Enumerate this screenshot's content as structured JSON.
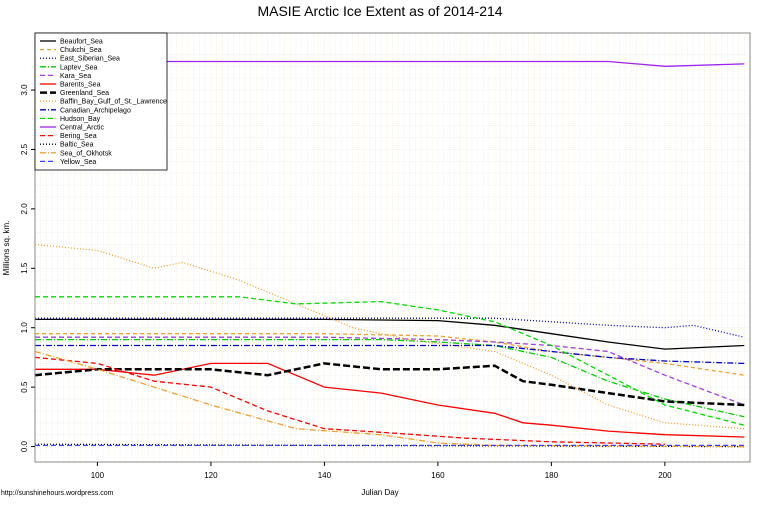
{
  "chart_data": {
    "type": "line",
    "title": "MASIE Arctic Ice Extent as of 2014-214",
    "xlabel": "Julian Day",
    "ylabel": "Millions sq. km.",
    "xlim": [
      89,
      215
    ],
    "ylim": [
      -0.13,
      3.48
    ],
    "xticks": [
      100,
      120,
      140,
      160,
      180,
      200
    ],
    "yticks": [
      0.0,
      0.5,
      1.0,
      1.5,
      2.0,
      2.5,
      3.0
    ],
    "ytick_labels": [
      "0.0",
      "0.5",
      "1.0",
      "1.5",
      "2.0",
      "2.5",
      "3.0"
    ],
    "grid": true,
    "legend_placement": "top-left",
    "footer": "http://sunshinehours.wordpress.com",
    "series": [
      {
        "name": "Beaufort_Sea",
        "color": "#000000",
        "dash": "",
        "x": [
          89,
          140,
          160,
          170,
          180,
          190,
          200,
          214
        ],
        "y": [
          1.07,
          1.07,
          1.06,
          1.02,
          0.95,
          0.88,
          0.82,
          0.85
        ]
      },
      {
        "name": "Chukchi_Sea",
        "color": "#f0a030",
        "dash": "4,3",
        "x": [
          89,
          140,
          160,
          170,
          180,
          190,
          200,
          214
        ],
        "y": [
          0.95,
          0.95,
          0.93,
          0.88,
          0.8,
          0.75,
          0.7,
          0.6
        ]
      },
      {
        "name": "East_Siberian_Sea",
        "color": "#0000cc",
        "dash": "1,2",
        "x": [
          89,
          140,
          170,
          180,
          190,
          200,
          205,
          214
        ],
        "y": [
          1.08,
          1.08,
          1.08,
          1.05,
          1.02,
          1.0,
          1.02,
          0.92
        ]
      },
      {
        "name": "Laptev_Sea",
        "color": "#00cc00",
        "dash": "6,2,1,2",
        "x": [
          89,
          150,
          160,
          170,
          180,
          190,
          200,
          214
        ],
        "y": [
          0.9,
          0.9,
          0.88,
          0.85,
          0.75,
          0.55,
          0.4,
          0.25
        ]
      },
      {
        "name": "Kara_Sea",
        "color": "#a040e0",
        "dash": "5,3",
        "x": [
          89,
          140,
          160,
          170,
          180,
          190,
          200,
          214
        ],
        "y": [
          0.92,
          0.92,
          0.9,
          0.88,
          0.85,
          0.8,
          0.6,
          0.35
        ]
      },
      {
        "name": "Barents_Sea",
        "color": "#ff0000",
        "dash": "",
        "x": [
          89,
          100,
          110,
          120,
          130,
          140,
          150,
          160,
          170,
          175,
          180,
          190,
          200,
          214
        ],
        "y": [
          0.65,
          0.65,
          0.6,
          0.7,
          0.7,
          0.5,
          0.45,
          0.35,
          0.28,
          0.2,
          0.18,
          0.13,
          0.1,
          0.08
        ]
      },
      {
        "name": "Greenland_Sea",
        "color": "#000000",
        "dash": "7,3",
        "width": 2.5,
        "x": [
          89,
          100,
          120,
          130,
          140,
          150,
          160,
          170,
          175,
          180,
          190,
          200,
          214
        ],
        "y": [
          0.6,
          0.65,
          0.65,
          0.6,
          0.7,
          0.65,
          0.65,
          0.68,
          0.55,
          0.52,
          0.45,
          0.38,
          0.35
        ]
      },
      {
        "name": "Baffin_Bay_Gulf_of_St._Lawrence",
        "color": "#f0a030",
        "dash": "1,2",
        "x": [
          89,
          100,
          110,
          115,
          125,
          135,
          145,
          155,
          170,
          180,
          190,
          200,
          214
        ],
        "y": [
          1.7,
          1.65,
          1.5,
          1.55,
          1.4,
          1.2,
          1.0,
          0.9,
          0.8,
          0.6,
          0.35,
          0.2,
          0.15
        ]
      },
      {
        "name": "Canadian_Archipelago",
        "color": "#0000cc",
        "dash": "6,2,1,2",
        "x": [
          89,
          170,
          180,
          190,
          200,
          214
        ],
        "y": [
          0.85,
          0.85,
          0.8,
          0.75,
          0.72,
          0.7
        ]
      },
      {
        "name": "Hudson_Bay",
        "color": "#00dd00",
        "dash": "5,3",
        "x": [
          89,
          125,
          135,
          150,
          160,
          170,
          180,
          190,
          200,
          214
        ],
        "y": [
          1.26,
          1.26,
          1.2,
          1.22,
          1.15,
          1.05,
          0.85,
          0.6,
          0.35,
          0.18
        ]
      },
      {
        "name": "Central_Arctic",
        "color": "#a020f0",
        "dash": "",
        "x": [
          89,
          190,
          200,
          214
        ],
        "y": [
          3.24,
          3.24,
          3.2,
          3.22
        ]
      },
      {
        "name": "Bering_Sea",
        "color": "#ff0000",
        "dash": "5,3",
        "x": [
          89,
          100,
          110,
          120,
          130,
          140,
          150,
          165,
          180,
          200
        ],
        "y": [
          0.75,
          0.7,
          0.55,
          0.5,
          0.3,
          0.15,
          0.12,
          0.07,
          0.04,
          0.02
        ]
      },
      {
        "name": "Baltic_Sea",
        "color": "#000000",
        "dash": "1,2",
        "x": [
          89,
          140,
          214
        ],
        "y": [
          0.02,
          0.01,
          0.0
        ]
      },
      {
        "name": "Sea_of_Okhotsk",
        "color": "#f0a030",
        "dash": "6,2,1,2",
        "x": [
          89,
          100,
          110,
          120,
          135,
          150,
          160,
          170,
          214
        ],
        "y": [
          0.8,
          0.65,
          0.5,
          0.35,
          0.15,
          0.1,
          0.03,
          0.01,
          0.0
        ]
      },
      {
        "name": "Yellow_Sea",
        "color": "#4040ff",
        "dash": "5,3",
        "x": [
          89,
          214
        ],
        "y": [
          0.01,
          0.01
        ]
      }
    ]
  }
}
